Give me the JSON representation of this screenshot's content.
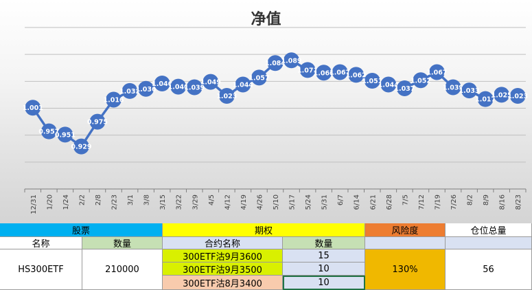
{
  "chart_data": {
    "type": "line",
    "title": "净值",
    "categories": [
      "12/31",
      "1/20",
      "1/24",
      "2/2",
      "2/8",
      "2/23",
      "3/1",
      "3/8",
      "3/15",
      "3/22",
      "3/29",
      "4/5",
      "4/12",
      "4/19",
      "4/26",
      "5/10",
      "5/17",
      "5/24",
      "5/31",
      "6/7",
      "6/14",
      "6/21",
      "6/28",
      "7/5",
      "7/12",
      "7/19",
      "7/26",
      "8/2",
      "8/9",
      "8/16",
      "8/23"
    ],
    "values": [
      1.001,
      0.957,
      0.951,
      0.929,
      0.975,
      1.016,
      1.032,
      1.036,
      1.046,
      1.04,
      1.039,
      1.049,
      1.023,
      1.044,
      1.057,
      1.084,
      1.089,
      1.071,
      1.066,
      1.067,
      1.062,
      1.051,
      1.044,
      1.037,
      1.052,
      1.067,
      1.039,
      1.033,
      1.017,
      1.025,
      1.023
    ],
    "labels": [
      "1.001",
      "0.957",
      "0.951",
      "0.929",
      "0.975",
      "1.016",
      "1.032",
      "1.036",
      "1.046",
      "1.040",
      "1.039",
      "1.049",
      "1.023",
      "1.044",
      "1.057",
      "1.084",
      "1.089",
      "1.071",
      "1.066",
      "1.067",
      "1.062",
      "1.051",
      "1.044",
      "1.037",
      "1.052",
      "1.067",
      "1.039",
      "1.033",
      "1.017",
      "1.025",
      "1.023"
    ],
    "ylim": [
      0.85,
      1.15
    ],
    "grid": true,
    "legend": "none",
    "color": "#4472c4"
  },
  "table": {
    "section_stock": "股票",
    "section_options": "期权",
    "section_risk": "风险度",
    "section_position": "仓位总量",
    "col_name": "名称",
    "col_qty": "数量",
    "col_contract": "合约名称",
    "col_opt_qty": "数量",
    "stock_name": "HS300ETF",
    "stock_qty": "210000",
    "options": [
      {
        "contract": "300ETF沽9月3600",
        "qty": "15"
      },
      {
        "contract": "300ETF沽9月3500",
        "qty": "10"
      },
      {
        "contract": "300ETF沽8月3400",
        "qty": "10"
      }
    ],
    "risk": "130%",
    "position": "56"
  },
  "colors": {
    "stock_header": "#00b0f0",
    "option_header": "#ffff00",
    "risk_header": "#ed7d31",
    "subheader": "#c6e0b4",
    "option_green": "#d9f000",
    "option_orange": "#f8cbad",
    "qty_blue": "#d9e1f2",
    "risk_value": "#f0b800"
  }
}
